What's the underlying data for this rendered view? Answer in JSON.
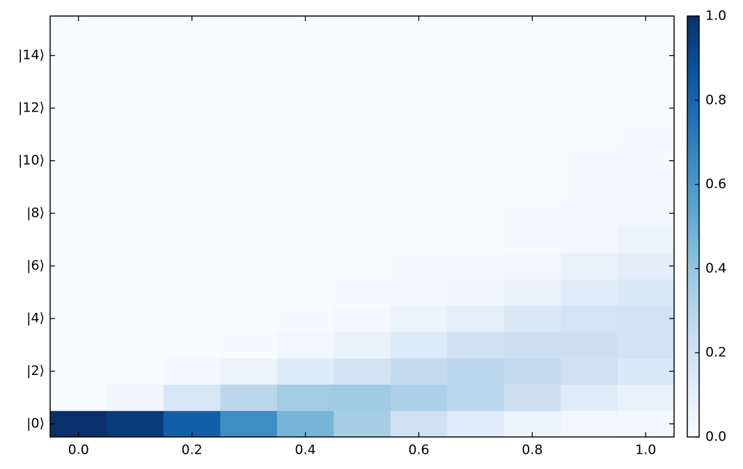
{
  "chart_data": {
    "type": "heatmap",
    "colormap": "Blues",
    "x": [
      0.0,
      0.1,
      0.2,
      0.3,
      0.4,
      0.5,
      0.6,
      0.7,
      0.8,
      0.9,
      1.0
    ],
    "y": [
      0,
      1,
      2,
      3,
      4,
      5,
      6,
      7,
      8,
      9,
      10,
      11,
      12,
      13,
      14,
      15
    ],
    "z": [
      [
        1.0,
        0.96,
        0.82,
        0.64,
        0.47,
        0.35,
        0.2,
        0.12,
        0.06,
        0.03,
        0.02
      ],
      [
        0.0,
        0.04,
        0.16,
        0.28,
        0.36,
        0.37,
        0.33,
        0.29,
        0.22,
        0.12,
        0.07
      ],
      [
        0.0,
        0.0,
        0.02,
        0.06,
        0.13,
        0.19,
        0.26,
        0.28,
        0.26,
        0.2,
        0.14
      ],
      [
        0.0,
        0.0,
        0.0,
        0.01,
        0.03,
        0.07,
        0.13,
        0.2,
        0.22,
        0.22,
        0.19
      ],
      [
        0.0,
        0.0,
        0.0,
        0.0,
        0.01,
        0.02,
        0.05,
        0.09,
        0.14,
        0.18,
        0.19
      ],
      [
        0.0,
        0.0,
        0.0,
        0.0,
        0.0,
        0.005,
        0.02,
        0.04,
        0.07,
        0.12,
        0.15
      ],
      [
        0.0,
        0.0,
        0.0,
        0.0,
        0.0,
        0.0,
        0.005,
        0.01,
        0.03,
        0.07,
        0.1
      ],
      [
        0.0,
        0.0,
        0.0,
        0.0,
        0.0,
        0.0,
        0.0,
        0.003,
        0.01,
        0.03,
        0.06
      ],
      [
        0.0,
        0.0,
        0.0,
        0.0,
        0.0,
        0.0,
        0.0,
        0.0,
        0.005,
        0.02,
        0.03
      ],
      [
        0.0,
        0.0,
        0.0,
        0.0,
        0.0,
        0.0,
        0.0,
        0.0,
        0.002,
        0.01,
        0.015
      ],
      [
        0.0,
        0.0,
        0.0,
        0.0,
        0.0,
        0.0,
        0.0,
        0.0,
        0.0,
        0.004,
        0.01
      ],
      [
        0.0,
        0.0,
        0.0,
        0.0,
        0.0,
        0.0,
        0.0,
        0.0,
        0.0,
        0.0,
        0.004
      ],
      [
        0.0,
        0.0,
        0.0,
        0.0,
        0.0,
        0.0,
        0.0,
        0.0,
        0.0,
        0.0,
        0.0
      ],
      [
        0.0,
        0.0,
        0.0,
        0.0,
        0.0,
        0.0,
        0.0,
        0.0,
        0.0,
        0.0,
        0.0
      ],
      [
        0.0,
        0.0,
        0.0,
        0.0,
        0.0,
        0.0,
        0.0,
        0.0,
        0.0,
        0.0,
        0.0
      ],
      [
        0.0,
        0.0,
        0.0,
        0.0,
        0.0,
        0.0,
        0.0,
        0.0,
        0.0,
        0.0,
        0.0
      ]
    ],
    "xlim": [
      -0.05,
      1.05
    ],
    "xticks": [
      {
        "value": 0,
        "label": "0.0"
      },
      0.2,
      0.4,
      0.6,
      0.8,
      {
        "value": 1,
        "label": "1.0"
      }
    ],
    "ylim": [
      -0.5,
      15.5
    ],
    "yticks": [
      {
        "value": 0,
        "label": "|0⟩"
      },
      {
        "value": 2,
        "label": "|2⟩"
      },
      {
        "value": 4,
        "label": "|4⟩"
      },
      {
        "value": 6,
        "label": "|6⟩"
      },
      {
        "value": 8,
        "label": "|8⟩"
      },
      {
        "value": 10,
        "label": "|10⟩"
      },
      {
        "value": 12,
        "label": "|12⟩"
      },
      {
        "value": 14,
        "label": "|14⟩"
      }
    ],
    "clim": [
      0,
      1
    ],
    "cticks": [
      {
        "value": 0,
        "label": "0.0"
      },
      0.2,
      0.4,
      0.6,
      0.8,
      {
        "value": 1,
        "label": "1.0"
      }
    ]
  }
}
